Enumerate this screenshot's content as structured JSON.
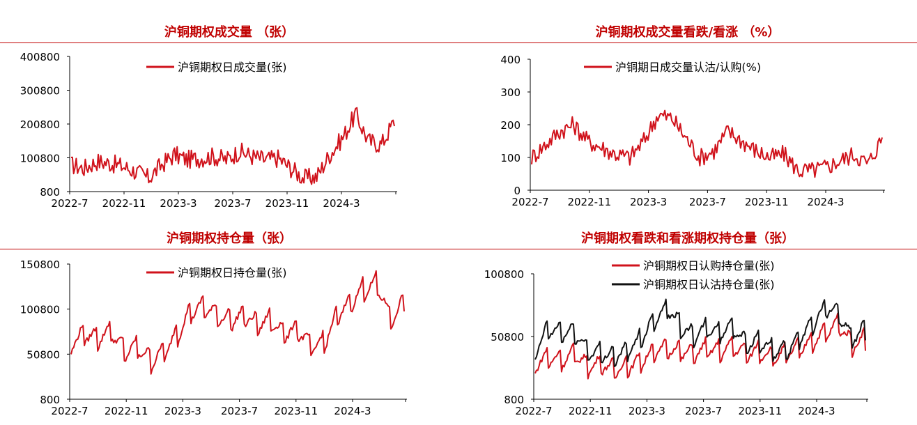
{
  "chart_data": [
    {
      "type": "line",
      "title": "沪铜期权成交量 （张）",
      "x_ticks": [
        "2022-7",
        "2022-11",
        "2023-3",
        "2023-7",
        "2023-11",
        "2024-3"
      ],
      "y_ticks": [
        "800",
        "100800",
        "200800",
        "300800",
        "400800"
      ],
      "ylim": [
        800,
        400800
      ],
      "legend": "top-center",
      "series": [
        {
          "name": "沪铜期权日成交量(张)",
          "color": "#d0121b",
          "x": [
            "2022-07",
            "2022-08",
            "2022-09",
            "2022-10",
            "2022-11",
            "2022-12",
            "2023-01",
            "2023-02",
            "2023-03",
            "2023-04",
            "2023-05",
            "2023-06",
            "2023-07",
            "2023-08",
            "2023-09",
            "2023-10",
            "2023-11",
            "2023-12",
            "2024-01",
            "2024-02",
            "2024-03",
            "2024-04",
            "2024-05",
            "2024-06",
            "2024-07",
            "2024-08"
          ],
          "values": [
            80000,
            70000,
            90000,
            85000,
            75000,
            60000,
            40000,
            80000,
            110000,
            95000,
            100000,
            105000,
            95000,
            120000,
            105000,
            95000,
            100000,
            70000,
            40000,
            45000,
            110000,
            160000,
            230000,
            150000,
            140000,
            210000
          ]
        }
      ]
    },
    {
      "type": "line",
      "title": "沪铜期权成交量看跌/看涨 （%）",
      "x_ticks": [
        "2022-7",
        "2022-11",
        "2023-3",
        "2023-7",
        "2023-11",
        "2024-3"
      ],
      "y_ticks": [
        "0",
        "100",
        "200",
        "300",
        "400"
      ],
      "ylim": [
        0,
        400
      ],
      "legend": "top-center",
      "series": [
        {
          "name": "沪铜期日成交量认沽/认购(%)",
          "color": "#d0121b",
          "x": [
            "2022-07",
            "2022-08",
            "2022-09",
            "2022-10",
            "2022-11",
            "2022-12",
            "2023-01",
            "2023-02",
            "2023-03",
            "2023-04",
            "2023-05",
            "2023-06",
            "2023-07",
            "2023-08",
            "2023-09",
            "2023-10",
            "2023-11",
            "2023-12",
            "2024-01",
            "2024-02",
            "2024-03",
            "2024-04",
            "2024-05",
            "2024-06",
            "2024-07",
            "2024-08"
          ],
          "values": [
            100,
            140,
            180,
            200,
            150,
            130,
            110,
            100,
            150,
            230,
            220,
            160,
            100,
            120,
            180,
            150,
            120,
            100,
            110,
            60,
            60,
            70,
            90,
            110,
            80,
            160
          ]
        }
      ]
    },
    {
      "type": "line",
      "title": "沪铜期权持仓量（张）",
      "x_ticks": [
        "2022-7",
        "2022-11",
        "2023-3",
        "2023-7",
        "2023-11",
        "2024-3"
      ],
      "y_ticks": [
        "800",
        "50800",
        "100800",
        "150800"
      ],
      "ylim": [
        800,
        150800
      ],
      "legend": "top-center",
      "series": [
        {
          "name": "沪铜期权日持仓量(张)",
          "color": "#d0121b",
          "x": [
            "2022-07",
            "2022-08",
            "2022-09",
            "2022-10",
            "2022-11",
            "2022-12",
            "2023-01",
            "2023-02",
            "2023-03",
            "2023-04",
            "2023-05",
            "2023-06",
            "2023-07",
            "2023-08",
            "2023-09",
            "2023-10",
            "2023-11",
            "2023-12",
            "2024-01",
            "2024-02",
            "2024-03",
            "2024-04",
            "2024-05",
            "2024-06",
            "2024-07",
            "2024-08"
          ],
          "values": [
            65000,
            75000,
            70000,
            78000,
            55000,
            60000,
            45000,
            55000,
            75000,
            100000,
            105000,
            95000,
            90000,
            95000,
            85000,
            90000,
            75000,
            80000,
            60000,
            65000,
            95000,
            110000,
            125000,
            130000,
            90000,
            110000
          ]
        }
      ]
    },
    {
      "type": "line",
      "title": "沪铜期权看跌和看涨期权持仓量（张）",
      "x_ticks": [
        "2022-7",
        "2022-11",
        "2023-3",
        "2023-7",
        "2023-11",
        "2024-3"
      ],
      "y_ticks": [
        "800",
        "50800",
        "100800"
      ],
      "ylim": [
        800,
        100800
      ],
      "legend": "top-center",
      "series": [
        {
          "name": "沪铜期权日认购持仓量(张)",
          "color": "#d0121b",
          "x": [
            "2022-07",
            "2022-08",
            "2022-09",
            "2022-10",
            "2022-11",
            "2022-12",
            "2023-01",
            "2023-02",
            "2023-03",
            "2023-04",
            "2023-05",
            "2023-06",
            "2023-07",
            "2023-08",
            "2023-09",
            "2023-10",
            "2023-11",
            "2023-12",
            "2024-01",
            "2024-02",
            "2024-03",
            "2024-04",
            "2024-05",
            "2024-06",
            "2024-07",
            "2024-08"
          ],
          "values": [
            30000,
            35000,
            33000,
            38000,
            28000,
            30000,
            25000,
            28000,
            32000,
            40000,
            42000,
            40000,
            38000,
            42000,
            40000,
            44000,
            38000,
            40000,
            35000,
            38000,
            42000,
            48000,
            55000,
            62000,
            45000,
            50000
          ]
        },
        {
          "name": "沪铜期权日认沽持仓量(张)",
          "color": "#111111",
          "x": [
            "2022-07",
            "2022-08",
            "2022-09",
            "2022-10",
            "2022-11",
            "2022-12",
            "2023-01",
            "2023-02",
            "2023-03",
            "2023-04",
            "2023-05",
            "2023-06",
            "2023-07",
            "2023-08",
            "2023-09",
            "2023-10",
            "2023-11",
            "2023-12",
            "2024-01",
            "2024-02",
            "2024-03",
            "2024-04",
            "2024-05",
            "2024-06",
            "2024-07",
            "2024-08"
          ],
          "values": [
            40000,
            58000,
            55000,
            55000,
            40000,
            38000,
            36000,
            40000,
            50000,
            65000,
            75000,
            60000,
            52000,
            58000,
            55000,
            60000,
            45000,
            48000,
            40000,
            40000,
            50000,
            62000,
            75000,
            70000,
            50000,
            58000
          ]
        }
      ]
    }
  ]
}
